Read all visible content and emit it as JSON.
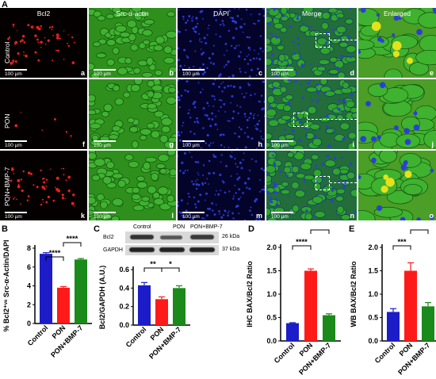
{
  "panel_A": {
    "letter": "A",
    "columns": [
      "Bcl2",
      "Src-α-actin",
      "DAPI",
      "Merge",
      "Enlarged"
    ],
    "rows": [
      {
        "label": "Control",
        "letters": [
          "a",
          "b",
          "c",
          "d",
          "e"
        ]
      },
      {
        "label": "PON",
        "letters": [
          "f",
          "g",
          "h",
          "i",
          "j"
        ]
      },
      {
        "label": "PON+BMP-7",
        "letters": [
          "k",
          "l",
          "m",
          "n",
          "o"
        ]
      }
    ],
    "scale_bar": "100 µm"
  },
  "panel_B": {
    "letter": "B"
  },
  "panel_C": {
    "letter": "C",
    "wb": {
      "lanes": [
        "Control",
        "PON",
        "PON+BMP-7"
      ],
      "rows": [
        {
          "protein": "Bcl2",
          "size": "26 kDa"
        },
        {
          "protein": "GAPDH",
          "size": "37 kDa"
        }
      ]
    }
  },
  "panel_D": {
    "letter": "D"
  },
  "panel_E": {
    "letter": "E"
  },
  "colors": {
    "control": "#1c1cc9",
    "pon": "#ff1a1a",
    "bmp": "#1a8a1a"
  },
  "chart_data": [
    {
      "id": "B",
      "type": "bar",
      "categories": [
        "Control",
        "PON",
        "PON+BMP-7"
      ],
      "values": [
        7.4,
        3.8,
        6.8
      ],
      "errors": [
        0.12,
        0.12,
        0.1
      ],
      "ylabel": "% Bcl2⁺ᵛᵉ Src-α-Actin/DAPI",
      "ylim": [
        0,
        8
      ],
      "yticks": [
        "0",
        "2",
        "4",
        "6",
        "8"
      ],
      "significance": [
        {
          "from": 0,
          "to": 1,
          "label": "****"
        },
        {
          "from": 1,
          "to": 2,
          "label": "****"
        }
      ]
    },
    {
      "id": "C",
      "type": "bar",
      "categories": [
        "Control",
        "PON",
        "PON+BMP-7"
      ],
      "values": [
        0.43,
        0.28,
        0.4
      ],
      "errors": [
        0.03,
        0.025,
        0.025
      ],
      "ylabel": "Bcl2/GAPDH (A.U.)",
      "ylim": [
        0,
        0.6
      ],
      "yticks": [
        "0.0",
        "0.2",
        "0.4",
        "0.6"
      ],
      "significance": [
        {
          "from": 0,
          "to": 1,
          "label": "**"
        },
        {
          "from": 1,
          "to": 2,
          "label": "*"
        }
      ]
    },
    {
      "id": "D",
      "type": "bar",
      "categories": [
        "Control",
        "PON",
        "PON+BMP-7"
      ],
      "values": [
        0.38,
        1.5,
        0.55
      ],
      "errors": [
        0.01,
        0.04,
        0.03
      ],
      "ylabel": "IHC BAX/Bcl2 Ratio",
      "ylim": [
        0,
        2.0
      ],
      "yticks": [
        "0.0",
        "0.5",
        "1.0",
        "1.5",
        "2.0"
      ],
      "significance": [
        {
          "from": 0,
          "to": 1,
          "label": "****"
        },
        {
          "from": 1,
          "to": 2,
          "label": "****"
        }
      ]
    },
    {
      "id": "E",
      "type": "bar",
      "categories": [
        "Control",
        "PON",
        "PON+BMP-7"
      ],
      "values": [
        0.62,
        1.5,
        0.74
      ],
      "errors": [
        0.07,
        0.17,
        0.08
      ],
      "ylabel": "WB BAX/Bcl2 Ratio",
      "ylim": [
        0,
        2.0
      ],
      "yticks": [
        "0.0",
        "0.5",
        "1.0",
        "1.5",
        "2.0"
      ],
      "significance": [
        {
          "from": 0,
          "to": 1,
          "label": "***"
        },
        {
          "from": 1,
          "to": 2,
          "label": "**"
        }
      ]
    }
  ]
}
